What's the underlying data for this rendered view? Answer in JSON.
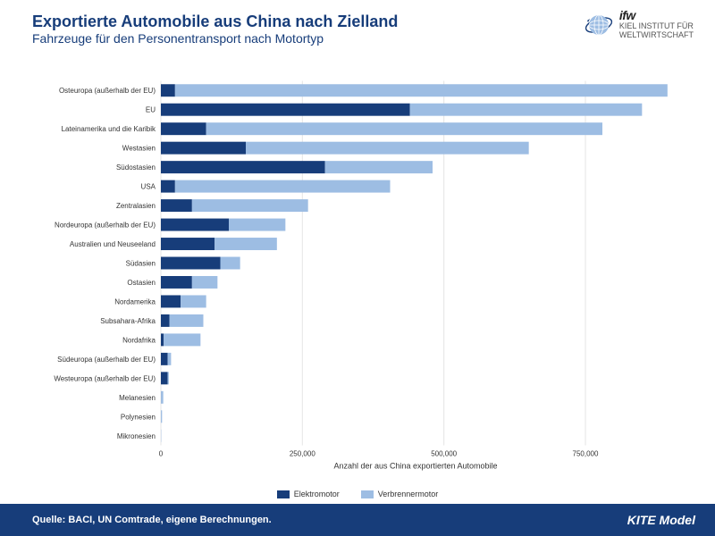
{
  "colors": {
    "title": "#173d7a",
    "subtitle": "#173d7a",
    "footer_bg": "#173d7a",
    "series1": "#173d7a",
    "series2": "#9dbde3",
    "grid": "#e5e5e5",
    "background": "#ffffff"
  },
  "header": {
    "title": "Exportierte Automobile aus China nach Zielland",
    "subtitle": "Fahrzeuge für den Personentransport nach Motortyp"
  },
  "logo": {
    "brand": "ifw",
    "line1": "KIEL INSTITUT FÜR",
    "line2": "WELTWIRTSCHAFT"
  },
  "chart": {
    "type": "stacked-horizontal-bar",
    "x_title": "Anzahl der aus China exportierten Automobile",
    "xlim": [
      0,
      900000
    ],
    "xtick_step": 250000,
    "xtick_labels": [
      "0",
      "250,000",
      "500,000",
      "750,000"
    ],
    "bar_height_ratio": 0.65,
    "label_fontsize": 8,
    "series": [
      {
        "key": "elektro",
        "label": "Elektromotor"
      },
      {
        "key": "verbrenner",
        "label": "Verbrennermotor"
      }
    ],
    "categories": [
      {
        "label": "Osteuropa (außerhalb der EU)",
        "elektro": 25000,
        "verbrenner": 870000
      },
      {
        "label": "EU",
        "elektro": 440000,
        "verbrenner": 410000
      },
      {
        "label": "Lateinamerika und die Karibik",
        "elektro": 80000,
        "verbrenner": 700000
      },
      {
        "label": "Westasien",
        "elektro": 150000,
        "verbrenner": 500000
      },
      {
        "label": "Südostasien",
        "elektro": 290000,
        "verbrenner": 190000
      },
      {
        "label": "USA",
        "elektro": 25000,
        "verbrenner": 380000
      },
      {
        "label": "Zentralasien",
        "elektro": 55000,
        "verbrenner": 205000
      },
      {
        "label": "Nordeuropa (außerhalb der EU)",
        "elektro": 120000,
        "verbrenner": 100000
      },
      {
        "label": "Australien und Neuseeland",
        "elektro": 95000,
        "verbrenner": 110000
      },
      {
        "label": "Südasien",
        "elektro": 105000,
        "verbrenner": 35000
      },
      {
        "label": "Ostasien",
        "elektro": 55000,
        "verbrenner": 45000
      },
      {
        "label": "Nordamerika",
        "elektro": 35000,
        "verbrenner": 45000
      },
      {
        "label": "Subsahara-Afrika",
        "elektro": 15000,
        "verbrenner": 60000
      },
      {
        "label": "Nordafrika",
        "elektro": 5000,
        "verbrenner": 65000
      },
      {
        "label": "Südeuropa (außerhalb der EU)",
        "elektro": 12000,
        "verbrenner": 6000
      },
      {
        "label": "Westeuropa (außerhalb der EU)",
        "elektro": 12000,
        "verbrenner": 2000
      },
      {
        "label": "Melanesien",
        "elektro": 200,
        "verbrenner": 4000
      },
      {
        "label": "Polynesien",
        "elektro": 100,
        "verbrenner": 2000
      },
      {
        "label": "Mikronesien",
        "elektro": 50,
        "verbrenner": 500
      }
    ]
  },
  "footer": {
    "source": "Quelle: BACI, UN Comtrade, eigene Berechnungen.",
    "model": "KITE Model"
  }
}
